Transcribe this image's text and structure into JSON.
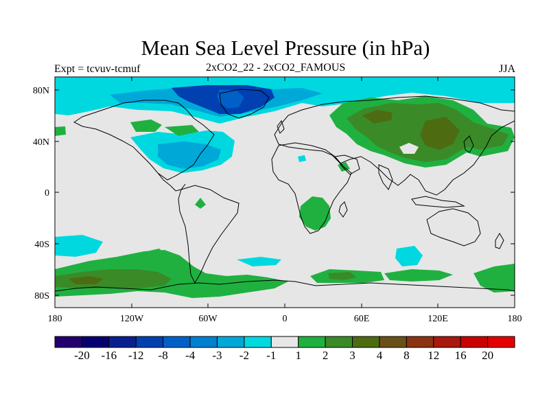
{
  "title": "Mean Sea Level Pressure (in hPa)",
  "experiment_label": "Expt = tcvuv-tcmuf",
  "comparison_label": "2xCO2_22 - 2xCO2_FAMOUS",
  "season_label": "JJA",
  "axes": {
    "lat_ticks": [
      "80N",
      "40N",
      "0",
      "40S",
      "80S"
    ],
    "lon_ticks": [
      "180",
      "120W",
      "60W",
      "0",
      "60E",
      "120E",
      "180"
    ]
  },
  "colorbar": {
    "labels": [
      "-20",
      "-16",
      "-12",
      "-8",
      "-4",
      "-3",
      "-2",
      "-1",
      "1",
      "2",
      "3",
      "4",
      "8",
      "12",
      "16",
      "20"
    ],
    "colors": [
      "#24006e",
      "#06006e",
      "#08208e",
      "#0040b0",
      "#0060c8",
      "#0080d0",
      "#00a8d8",
      "#00d8e0",
      "#e6e6e6",
      "#20b040",
      "#3a8a28",
      "#4d6c12",
      "#6a5018",
      "#8a3212",
      "#a8180e",
      "#c80000",
      "#e40000"
    ]
  },
  "colors": {
    "background": "#e6e6e6",
    "dark_blue": "#0040b0",
    "mid_blue": "#0060c8",
    "light_blue": "#00a8d8",
    "cyan": "#00d8e0",
    "green": "#20b040",
    "olive": "#3a8a28",
    "brown_olive": "#4d6c12"
  }
}
